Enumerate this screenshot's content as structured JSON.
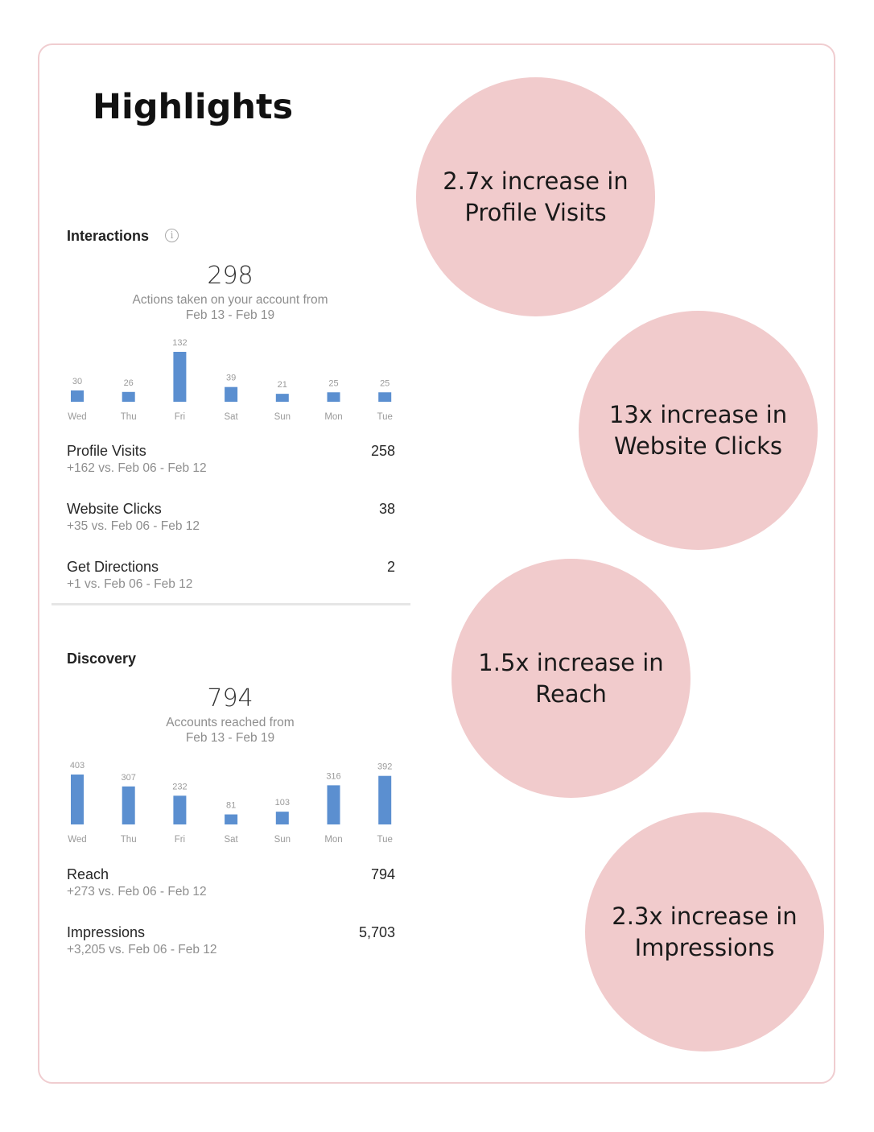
{
  "page": {
    "title": "Highlights"
  },
  "interactions": {
    "heading": "Interactions",
    "info_icon": "i",
    "total": "298",
    "subtitle_line1": "Actions taken on your account from",
    "subtitle_line2": "Feb 13 - Feb 19",
    "metrics": [
      {
        "label": "Profile Visits",
        "delta": "+162 vs. Feb 06 - Feb 12",
        "value": "258"
      },
      {
        "label": "Website Clicks",
        "delta": "+35 vs. Feb 06 - Feb 12",
        "value": "38"
      },
      {
        "label": "Get Directions",
        "delta": "+1 vs. Feb 06 - Feb 12",
        "value": "2"
      }
    ]
  },
  "discovery": {
    "heading": "Discovery",
    "total": "794",
    "subtitle_line1": "Accounts reached from",
    "subtitle_line2": "Feb 13 - Feb 19",
    "metrics": [
      {
        "label": "Reach",
        "delta": "+273 vs. Feb 06 - Feb 12",
        "value": "794"
      },
      {
        "label": "Impressions",
        "delta": "+3,205 vs. Feb 06 - Feb 12",
        "value": "5,703"
      }
    ]
  },
  "highlights": [
    {
      "text": "2.7x increase in Profile Visits"
    },
    {
      "text": "13x increase in Website Clicks"
    },
    {
      "text": "1.5x increase in Reach"
    },
    {
      "text": "2.3x increase in Impressions"
    }
  ],
  "colors": {
    "bar": "#5b8fd0",
    "circle": "#f1cbcc",
    "frame_border": "#f0cdd0"
  },
  "chart_data": [
    {
      "type": "bar",
      "categories": [
        "Wed",
        "Thu",
        "Fri",
        "Sat",
        "Sun",
        "Mon",
        "Tue"
      ],
      "values": [
        30,
        26,
        132,
        39,
        21,
        25,
        25
      ],
      "ylim": [
        0,
        132
      ]
    },
    {
      "type": "bar",
      "categories": [
        "Wed",
        "Thu",
        "Fri",
        "Sat",
        "Sun",
        "Mon",
        "Tue"
      ],
      "values": [
        403,
        307,
        232,
        81,
        103,
        316,
        392
      ],
      "ylim": [
        0,
        403
      ]
    }
  ]
}
